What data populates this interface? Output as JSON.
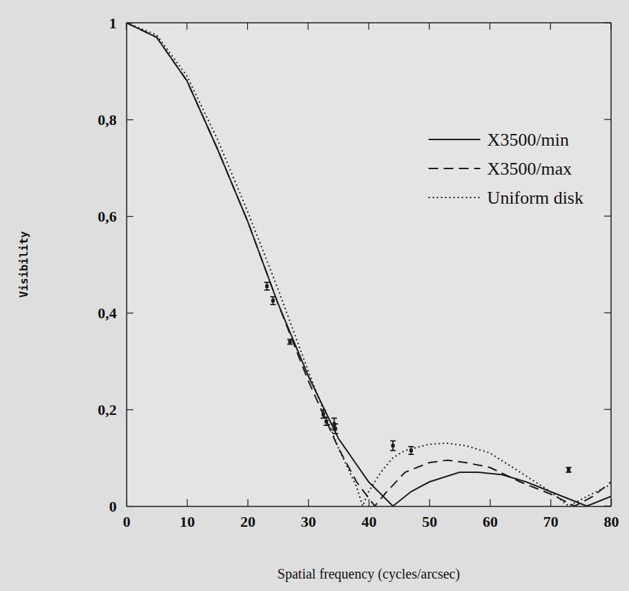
{
  "chart_data": {
    "type": "line",
    "x_label": "Spatial frequency (cycles/arcsec)",
    "y_label": "Visibility",
    "xlim": [
      0,
      80
    ],
    "ylim": [
      0,
      1
    ],
    "xticks": [
      0,
      10,
      20,
      30,
      40,
      50,
      60,
      70,
      80
    ],
    "yticks": [
      0,
      {
        "value": 0.2,
        "label": "0,2"
      },
      {
        "value": 0.4,
        "label": "0,4"
      },
      {
        "value": 0.6,
        "label": "0,6"
      },
      {
        "value": 0.8,
        "label": "0,8"
      },
      1
    ],
    "legend": "upper right",
    "grid": false,
    "series": [
      {
        "name": "X3500/min",
        "color": "#1a1a1a",
        "line_style": "solid",
        "x": [
          0,
          5,
          10,
          15,
          20,
          25,
          30,
          35,
          40,
          44,
          47,
          50,
          55,
          58,
          62,
          66,
          70,
          74,
          76,
          78,
          80
        ],
        "values": [
          1,
          0.97,
          0.88,
          0.74,
          0.59,
          0.42,
          0.27,
          0.14,
          0.05,
          0,
          0.03,
          0.05,
          0.07,
          0.07,
          0.065,
          0.05,
          0.03,
          0.01,
          0,
          0.01,
          0.02
        ]
      },
      {
        "name": "X3500/max",
        "color": "#1a1a1a",
        "line_style": "dashed",
        "x": [
          0,
          5,
          10,
          15,
          20,
          25,
          30,
          35,
          38,
          41,
          43,
          46,
          50,
          53,
          56,
          60,
          65,
          70,
          74,
          77,
          80
        ],
        "values": [
          1,
          0.97,
          0.88,
          0.74,
          0.59,
          0.42,
          0.26,
          0.12,
          0.05,
          0,
          0.03,
          0.07,
          0.09,
          0.095,
          0.09,
          0.08,
          0.05,
          0.025,
          0,
          0.02,
          0.05
        ]
      },
      {
        "name": "Uniform disk",
        "color": "#1a1a1a",
        "line_style": "dotted",
        "x": [
          0,
          5,
          10,
          15,
          20,
          25,
          30,
          35,
          38,
          39,
          40,
          42,
          44,
          46,
          50,
          53,
          56,
          60,
          65,
          70,
          73,
          76,
          80
        ],
        "values": [
          1,
          0.975,
          0.89,
          0.76,
          0.61,
          0.45,
          0.28,
          0.12,
          0.04,
          0,
          0.03,
          0.07,
          0.1,
          0.115,
          0.128,
          0.13,
          0.125,
          0.11,
          0.07,
          0.03,
          0,
          0.02,
          0.045
        ]
      },
      {
        "type": "scatter",
        "color": "#1a1a1a",
        "marker": "square",
        "x": [
          23.2,
          24.2,
          27,
          32.5,
          33,
          34.3,
          34.5,
          44,
          47,
          73
        ],
        "values": [
          0.455,
          0.425,
          0.34,
          0.19,
          0.175,
          0.17,
          0.16,
          0.125,
          0.115,
          0.075
        ],
        "errors": [
          0.008,
          0.008,
          0.005,
          0.008,
          0.008,
          0.012,
          0.01,
          0.01,
          0.008,
          0.005
        ]
      }
    ]
  }
}
